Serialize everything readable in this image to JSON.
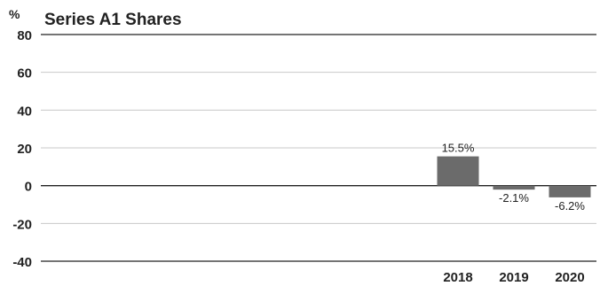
{
  "chart_data": {
    "type": "bar",
    "title": "Series A1 Shares",
    "ylabel": "%",
    "xlabel": "",
    "ylim": [
      -40,
      80
    ],
    "yticks": [
      80,
      60,
      40,
      20,
      0,
      -20,
      -40
    ],
    "grid": true,
    "categories": [
      "2018",
      "2019",
      "2020"
    ],
    "values": [
      15.5,
      -2.1,
      -6.2
    ],
    "data_labels": [
      "15.5%",
      "-2.1%",
      "-6.2%"
    ],
    "bar_color": "#6b6b6b",
    "grid_color": "#c8c8c8",
    "axis_color": "#222222"
  }
}
